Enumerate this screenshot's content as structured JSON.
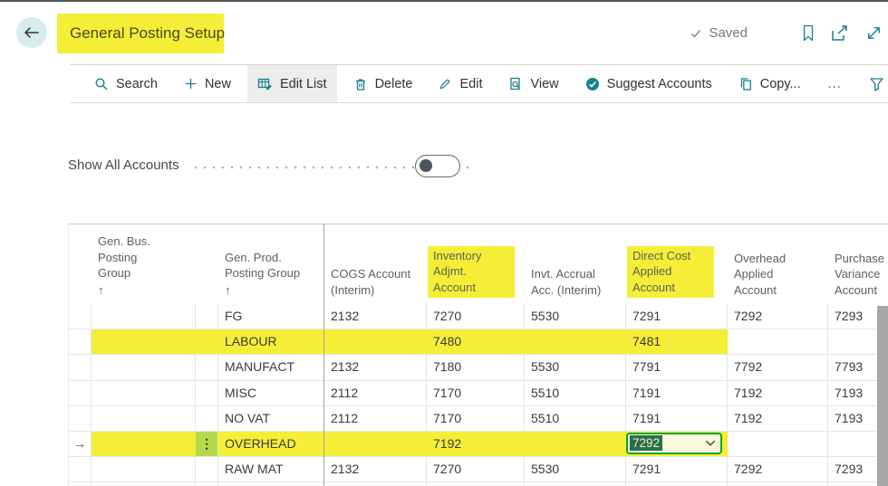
{
  "app": {
    "title": "General Posting Setup",
    "saved_label": "Saved",
    "colors": {
      "accent_teal": "#17808d",
      "highlight_yellow": "#f4ef36",
      "row_menu_green": "#b4d94a",
      "active_cell_border_green": "#0da32f",
      "active_cell_selection": "#2a6e52"
    }
  },
  "toolbar": {
    "items": [
      {
        "label": "Search",
        "icon": "search-icon"
      },
      {
        "label": "New",
        "icon": "plus-icon"
      },
      {
        "label": "Edit List",
        "icon": "edit-list-icon",
        "active": true
      },
      {
        "label": "Delete",
        "icon": "delete-icon"
      },
      {
        "label": "Edit",
        "icon": "pencil-icon"
      },
      {
        "label": "View",
        "icon": "view-icon"
      },
      {
        "label": "Suggest Accounts",
        "icon": "suggest-accounts-icon"
      },
      {
        "label": "Copy...",
        "icon": "copy-icon"
      },
      {
        "label": "…",
        "icon": "more-options-icon"
      }
    ]
  },
  "filter_row": {
    "show_all_label": "Show All Accounts",
    "toggle_on": false
  },
  "table": {
    "sort_indicator": "↑",
    "active_row_arrow": "→",
    "row_menu_glyph": "⋮",
    "headers": [
      {
        "label": "Gen. Bus. Posting Group",
        "sorted": true,
        "highlighted": false
      },
      {
        "label": "Gen. Prod. Posting Group",
        "sorted": true,
        "highlighted": false
      },
      {
        "label": "COGS Account (Interim)",
        "sorted": false,
        "highlighted": false
      },
      {
        "label": "Inventory Adjmt. Account",
        "sorted": false,
        "highlighted": true
      },
      {
        "label": "Invt. Accrual Acc. (Interim)",
        "sorted": false,
        "highlighted": false
      },
      {
        "label": "Direct Cost Applied Account",
        "sorted": false,
        "highlighted": true
      },
      {
        "label": "Overhead Applied Account",
        "sorted": false,
        "highlighted": false
      },
      {
        "label": "Purchase Variance Account",
        "sorted": false,
        "highlighted": false
      }
    ],
    "rows": [
      {
        "cells": [
          "",
          "FG",
          "2132",
          "7270",
          "5530",
          "7291",
          "7292",
          "7293"
        ]
      },
      {
        "cells": [
          "",
          "LABOUR",
          "",
          "7480",
          "",
          "7481",
          "",
          ""
        ],
        "highlighted": true
      },
      {
        "cells": [
          "",
          "MANUFACT",
          "2132",
          "7180",
          "5530",
          "7791",
          "7792",
          "7793"
        ]
      },
      {
        "cells": [
          "",
          "MISC",
          "2112",
          "7170",
          "5510",
          "7191",
          "7192",
          "7193"
        ]
      },
      {
        "cells": [
          "",
          "NO VAT",
          "2112",
          "7170",
          "5510",
          "7191",
          "7192",
          "7193"
        ]
      },
      {
        "cells": [
          "",
          "OVERHEAD",
          "",
          "7192",
          "",
          "7292",
          "",
          ""
        ],
        "highlighted": true,
        "active": true,
        "editing_col": 5
      },
      {
        "cells": [
          "",
          "RAW MAT",
          "2132",
          "7270",
          "5530",
          "7291",
          "7292",
          "7293"
        ]
      }
    ],
    "active_cell": {
      "row_label": "OVERHEAD",
      "column": "direct_cost_applied_account",
      "value": "7292"
    }
  }
}
